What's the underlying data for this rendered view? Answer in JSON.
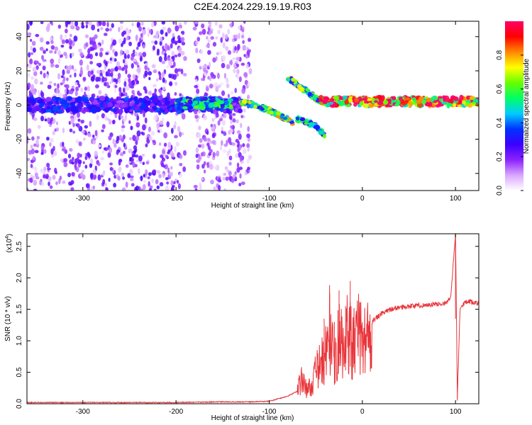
{
  "title": "C2E4.2024.229.19.19.R03",
  "spectrogram": {
    "type": "heatmap",
    "ylabel": "Frequency (Hz)",
    "xlabel": "Height of straight line (km)",
    "xlim": [
      -360,
      125
    ],
    "ylim": [
      -50,
      49
    ],
    "xticks": [
      -300,
      -200,
      -100,
      0,
      100
    ],
    "yticks": [
      -40,
      -20,
      0,
      20,
      40
    ],
    "colorbar": {
      "label": "Normalized spectral amplitude",
      "range": [
        0,
        1
      ],
      "ticks": [
        "0.0",
        "0.2",
        "0.4",
        "0.6",
        "0.8"
      ],
      "tick_values": [
        0,
        0.2,
        0.4,
        0.6,
        0.8
      ],
      "colors": [
        "#ffffff",
        "#d9a6ff",
        "#8b22ff",
        "#3a00ff",
        "#0033ff",
        "#00ccff",
        "#00ff66",
        "#66ff00",
        "#ffff00",
        "#ff8800",
        "#ff0000",
        "#ff0066"
      ]
    },
    "features": [
      {
        "kind": "scatter-noise",
        "x": [
          -360,
          -190
        ],
        "y": [
          -50,
          49
        ],
        "amplitude": 0.15
      },
      {
        "kind": "scatter-noise",
        "x": [
          -180,
          -120
        ],
        "y": [
          -50,
          49
        ],
        "amplitude": 0.12
      },
      {
        "kind": "band",
        "x": [
          -360,
          -130
        ],
        "y_center": 0,
        "halfwidth": 4,
        "amplitude": 0.3
      },
      {
        "kind": "band",
        "x": [
          -200,
          -140
        ],
        "y_center": 1,
        "halfwidth": 3,
        "amplitude": 0.5
      },
      {
        "kind": "track",
        "points": [
          [
            -130,
            2
          ],
          [
            -100,
            -3
          ],
          [
            -75,
            -10
          ]
        ],
        "amplitude": 0.6
      },
      {
        "kind": "track",
        "points": [
          [
            -80,
            16
          ],
          [
            -60,
            8
          ],
          [
            -45,
            2
          ]
        ],
        "amplitude": 0.55
      },
      {
        "kind": "track",
        "points": [
          [
            -70,
            -8
          ],
          [
            -50,
            -12
          ],
          [
            -40,
            -18
          ]
        ],
        "amplitude": 0.5
      },
      {
        "kind": "band",
        "x": [
          -45,
          125
        ],
        "y_center": 2,
        "halfwidth": 2.5,
        "amplitude": 0.9
      }
    ]
  },
  "snr": {
    "type": "line",
    "ylabel": "SNR (10 * v/v)",
    "xlabel": "Height of straight line (km)",
    "scale_label": "(x10",
    "scale_exponent": "4",
    "scale_close": ")",
    "xlim": [
      -360,
      125
    ],
    "ylim": [
      0,
      2.7
    ],
    "xticks": [
      -300,
      -200,
      -100,
      0,
      100
    ],
    "yticks": [
      "0.0",
      "0.5",
      "1.0",
      "1.5",
      "2.0",
      "2.5"
    ],
    "ytick_values": [
      0,
      0.5,
      1.0,
      1.5,
      2.0,
      2.5
    ],
    "color": "#e8353a",
    "x": [
      -360,
      -300,
      -200,
      -150,
      -120,
      -100,
      -90,
      -80,
      -70,
      -65,
      -60,
      -55,
      -50,
      -45,
      -40,
      -35,
      -30,
      -25,
      -20,
      -15,
      -10,
      -5,
      0,
      5,
      10,
      20,
      30,
      40,
      50,
      60,
      70,
      80,
      90,
      95,
      100,
      102,
      105,
      110,
      115,
      120,
      125
    ],
    "y": [
      0.02,
      0.02,
      0.02,
      0.03,
      0.03,
      0.04,
      0.08,
      0.12,
      0.2,
      0.45,
      0.25,
      0.3,
      0.55,
      0.7,
      0.8,
      1.35,
      0.6,
      1.2,
      0.9,
      1.3,
      1.0,
      1.25,
      1.1,
      1.2,
      1.3,
      1.42,
      1.5,
      1.53,
      1.55,
      1.56,
      1.57,
      1.58,
      1.6,
      1.7,
      2.7,
      0.1,
      1.55,
      1.6,
      1.62,
      1.6,
      1.6
    ],
    "spikes": [
      {
        "x": -41,
        "y": 1.35
      },
      {
        "x": -35,
        "y": 1.75
      },
      {
        "x": -30,
        "y": 1.3
      },
      {
        "x": -25,
        "y": 1.8
      },
      {
        "x": -18,
        "y": 1.55
      },
      {
        "x": -13,
        "y": 1.95
      },
      {
        "x": -8,
        "y": 1.2
      },
      {
        "x": 100,
        "y": 2.7
      },
      {
        "x": 102,
        "y": 0.12
      }
    ]
  }
}
